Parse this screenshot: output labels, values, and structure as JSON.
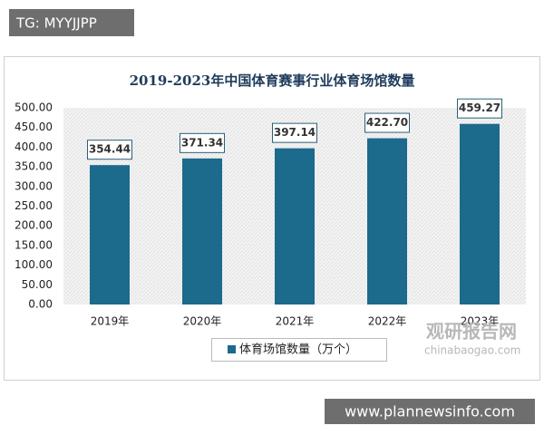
{
  "badge": "TG: MYYJJPP",
  "footer": "www.plannewsinfo.com",
  "watermark": {
    "name": "观研报告网",
    "site": "chinabaogao.com"
  },
  "chart_data": {
    "type": "bar",
    "title": "2019-2023年中国体育赛事行业体育场馆数量",
    "categories": [
      "2019年",
      "2020年",
      "2021年",
      "2022年",
      "2023年"
    ],
    "series": [
      {
        "name": "体育场馆数量（万个）",
        "color": "#1c6a8c",
        "values": [
          354.44,
          371.34,
          397.14,
          422.7,
          459.27
        ],
        "value_labels": [
          "354.44",
          "371.34",
          "397.14",
          "422.70",
          "459.27"
        ]
      }
    ],
    "ylim": [
      0,
      500
    ],
    "yticks": [
      {
        "value": 0,
        "label": "0.00"
      },
      {
        "value": 50,
        "label": "50.00"
      },
      {
        "value": 100,
        "label": "100.00"
      },
      {
        "value": 150,
        "label": "150.00"
      },
      {
        "value": 200,
        "label": "200.00"
      },
      {
        "value": 250,
        "label": "250.00"
      },
      {
        "value": 300,
        "label": "300.00"
      },
      {
        "value": 350,
        "label": "350.00"
      },
      {
        "value": 400,
        "label": "400.00"
      },
      {
        "value": 450,
        "label": "450.00"
      },
      {
        "value": 500,
        "label": "500.00"
      }
    ],
    "legend": "bottom"
  }
}
